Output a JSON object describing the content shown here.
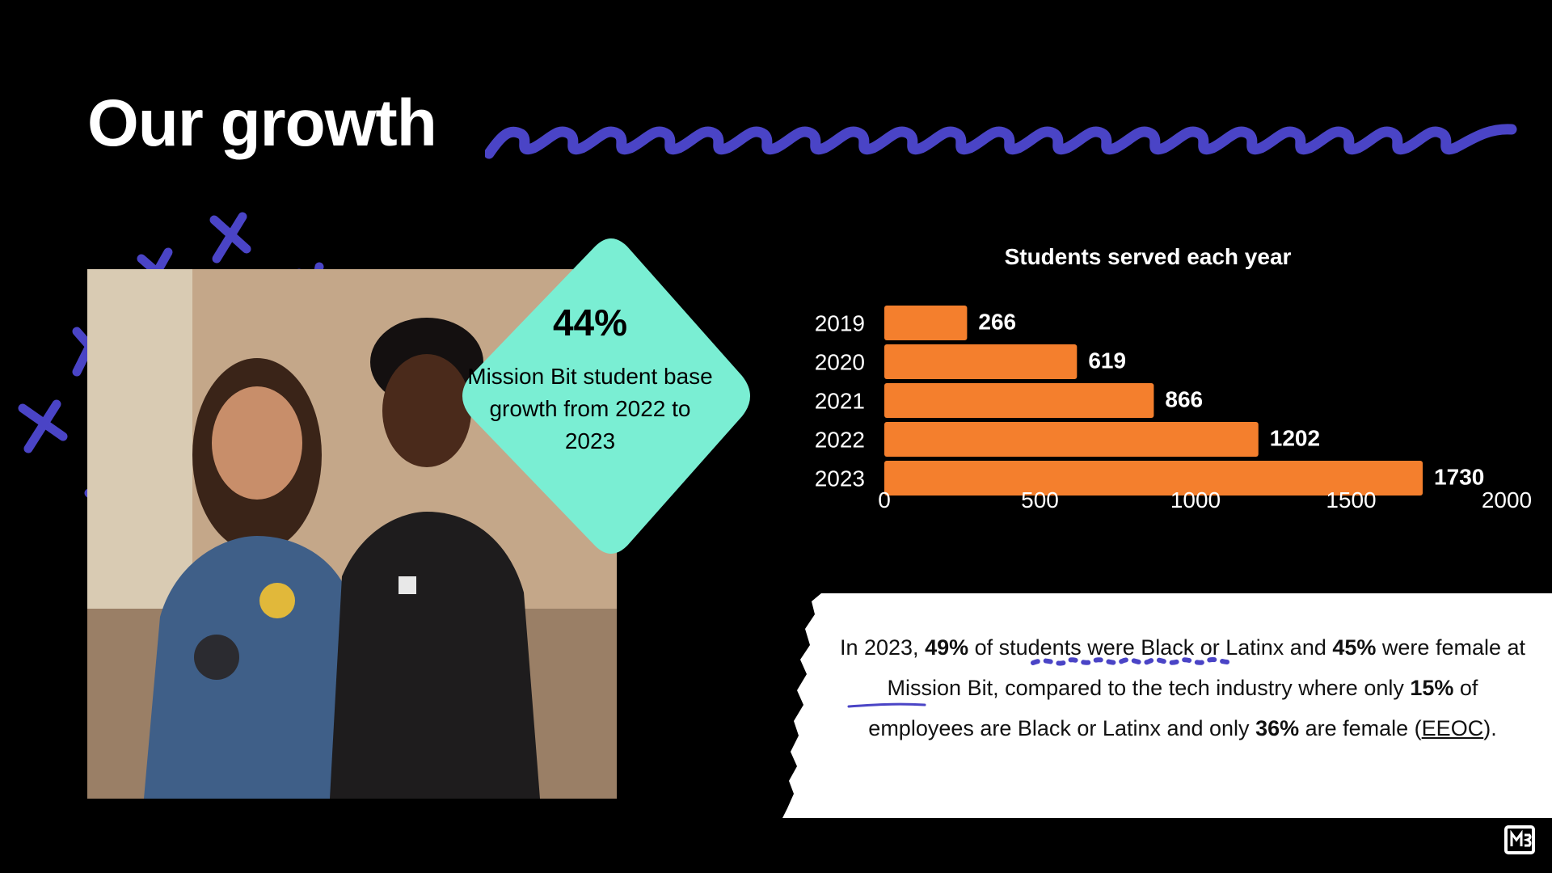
{
  "slide": {
    "title": "Our growth"
  },
  "stat": {
    "value": "44%",
    "description": "Mission Bit student base growth from 2022 to 2023",
    "color": "#7aeed3"
  },
  "chart_data": {
    "type": "bar",
    "orientation": "horizontal",
    "title": "Students served each year",
    "categories": [
      "2019",
      "2020",
      "2021",
      "2022",
      "2023"
    ],
    "values": [
      266,
      619,
      866,
      1202,
      1730
    ],
    "xlim": [
      0,
      2000
    ],
    "x_ticks": [
      "0",
      "500",
      "1000",
      "1500",
      "2000"
    ],
    "bar_color": "#f47f2d",
    "grid": false
  },
  "note": {
    "p1": "In 2023, ",
    "b1": "49%",
    "p2": " of students were Black or Latinx and ",
    "b2": "45%",
    "p3": " were ",
    "p4": "female",
    "p5": " at Mission Bit, compared to the tech industry where only ",
    "b3": "15%",
    "p6": " of employees are Black or Latinx and only ",
    "b4": "36%",
    "p7": " are female (",
    "link": "EEOC",
    "p8": ")."
  },
  "colors": {
    "background": "#000000",
    "accent_purple": "#4a44c6",
    "accent_orange": "#f47f2d",
    "accent_mint": "#7aeed3"
  }
}
